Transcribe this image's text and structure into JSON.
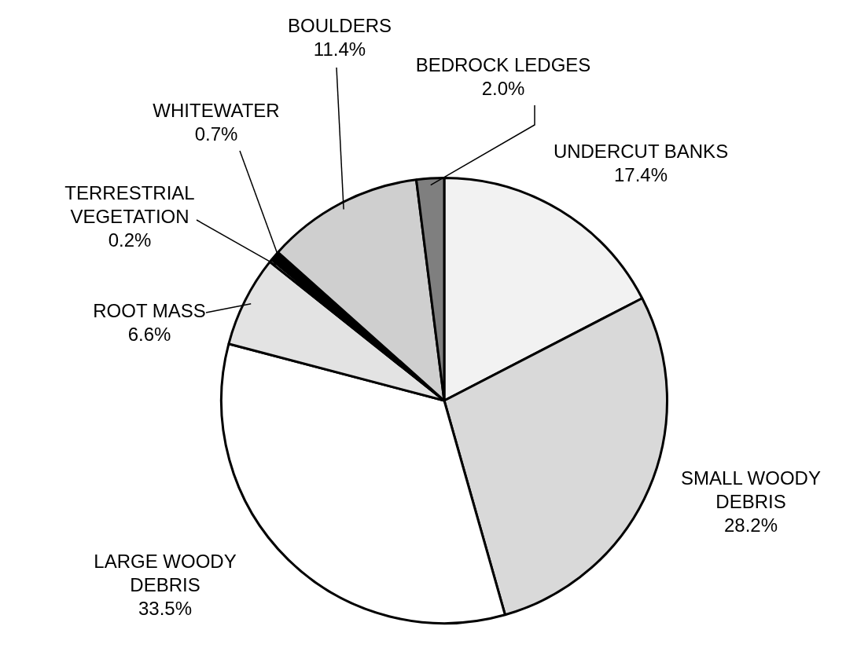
{
  "chart_data": {
    "type": "pie",
    "categories": [
      "UNDERCUT BANKS",
      "SMALL WOODY DEBRIS",
      "LARGE WOODY DEBRIS",
      "ROOT MASS",
      "TERRESTRIAL VEGETATION",
      "WHITEWATER",
      "BOULDERS",
      "BEDROCK LEDGES"
    ],
    "values": [
      17.4,
      28.2,
      33.5,
      6.6,
      0.2,
      0.7,
      11.4,
      2.0
    ],
    "value_labels": [
      "17.4%",
      "28.2%",
      "33.5%",
      "6.6%",
      "0.2%",
      "0.7%",
      "11.4%",
      "2.0%"
    ],
    "colors": [
      "#f2f2f2",
      "#d9d9d9",
      "#ffffff",
      "#e3e3e3",
      "#bfbfbf",
      "#000000",
      "#cfcfcf",
      "#7f7f7f"
    ],
    "legend": false
  }
}
